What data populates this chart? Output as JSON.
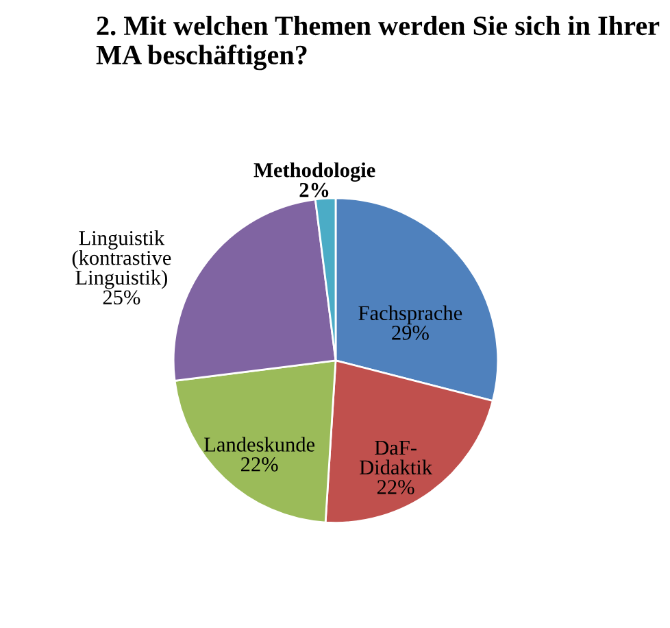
{
  "chart_data": {
    "type": "pie",
    "title": "2. Mit welchen Themen werden Sie sich in Ihrer MA beschäftigen?",
    "categories": [
      "Fachsprache",
      "DaF-Didaktik",
      "Landeskunde",
      "Linguistik (kontrastive Linguistik)",
      "Methodologie"
    ],
    "values": [
      29,
      22,
      22,
      25,
      2
    ],
    "colors": [
      "#4f81bd",
      "#c0504d",
      "#9bbb59",
      "#8064a2",
      "#4bacc6"
    ],
    "value_labels": [
      "29%",
      "22%",
      "22%",
      "25%",
      "2%"
    ]
  }
}
